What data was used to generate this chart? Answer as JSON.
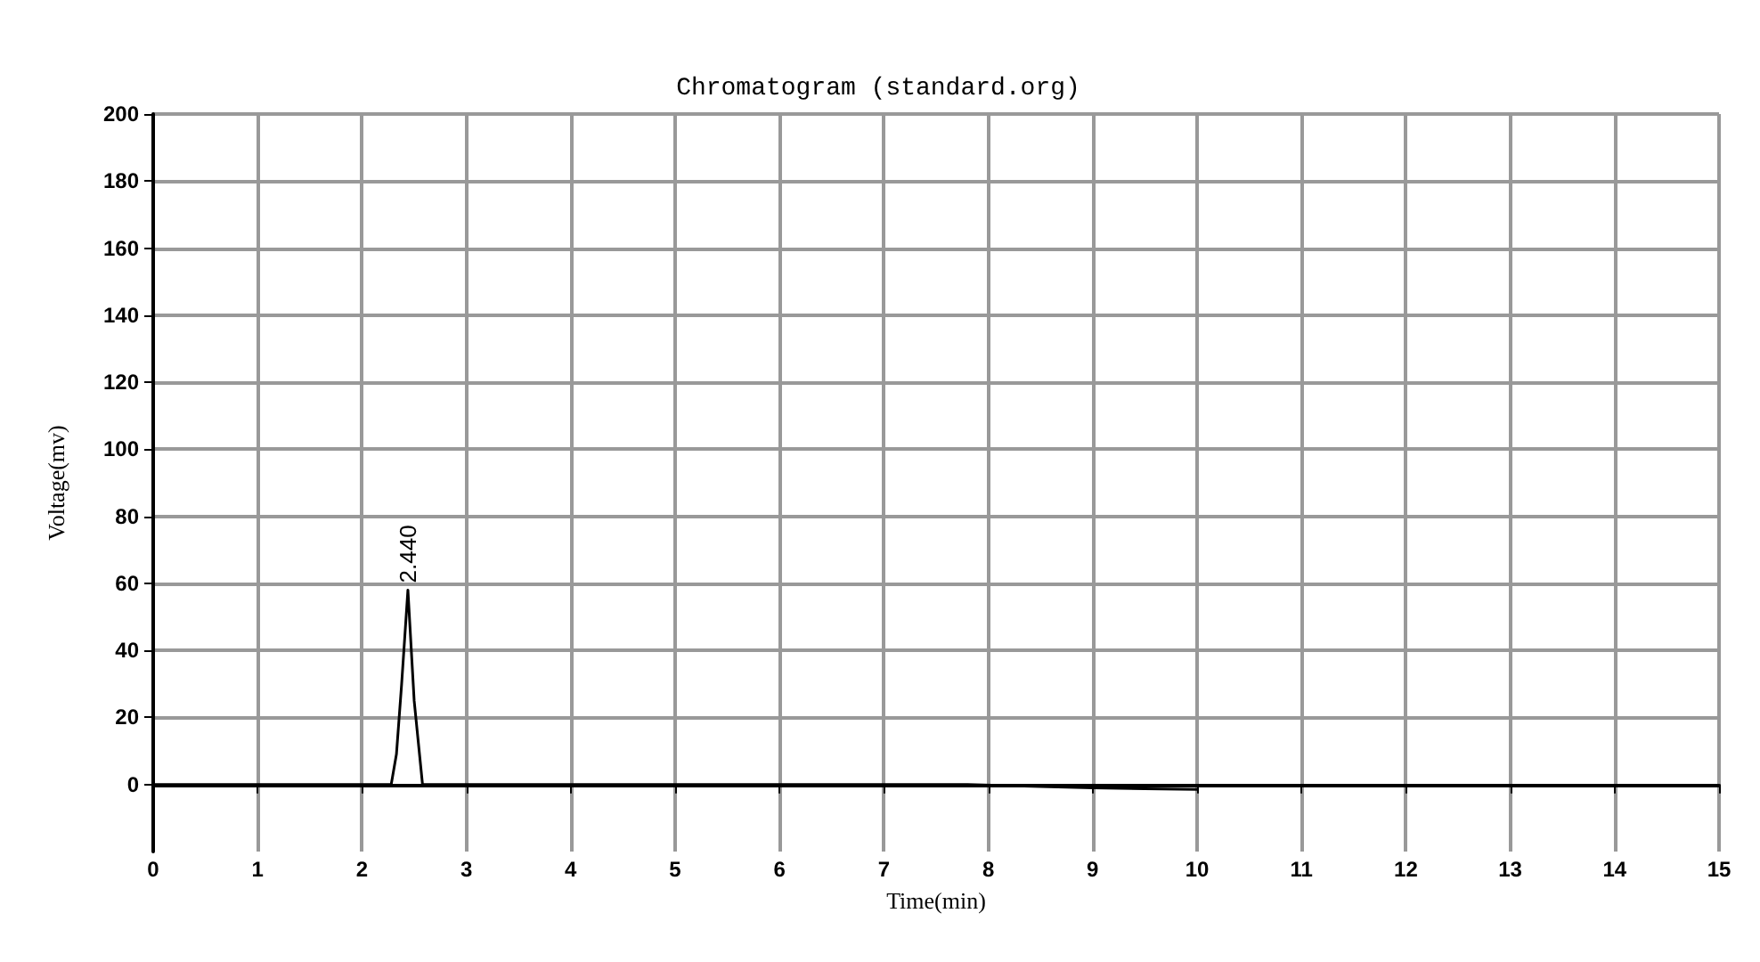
{
  "chart_data": {
    "type": "line",
    "title": "Chromatogram (standard.org)",
    "xlabel": "Time(min)",
    "ylabel": "Voltage(mv)",
    "x": [
      0,
      1,
      2,
      2.28,
      2.33,
      2.38,
      2.44,
      2.5,
      2.58,
      3,
      5,
      7,
      7.8,
      8.5,
      9,
      9.5,
      10
    ],
    "series": [
      {
        "color": "#000000",
        "values": [
          0,
          0,
          0,
          0,
          9,
          30,
          58,
          25,
          0,
          0,
          0,
          0,
          0,
          -0.6,
          -1,
          -1.3,
          -1.5
        ]
      }
    ],
    "xlim": [
      0,
      15
    ],
    "xticks": [
      0,
      1,
      2,
      3,
      4,
      5,
      6,
      7,
      8,
      9,
      10,
      11,
      12,
      13,
      14,
      15
    ],
    "ylim": [
      -20,
      200
    ],
    "yticks": [
      0,
      20,
      40,
      60,
      80,
      100,
      120,
      140,
      160,
      180,
      200
    ],
    "annotations": [
      {
        "text": "2.440",
        "x": 2.44,
        "y": 58
      }
    ],
    "grid": true,
    "marker": "none",
    "line_style": "solid"
  }
}
